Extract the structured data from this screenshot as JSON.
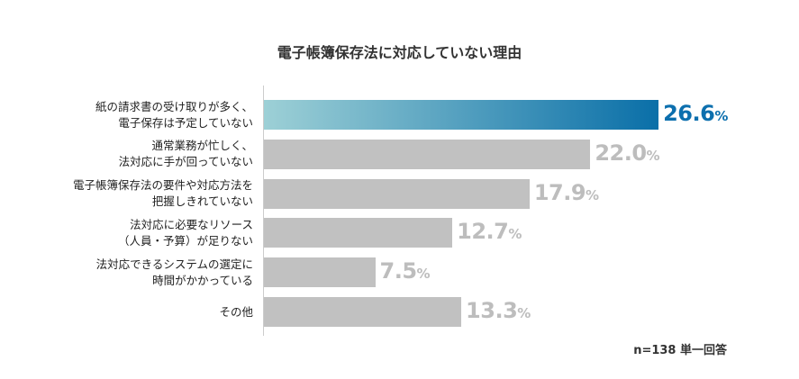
{
  "chart_data": {
    "type": "bar",
    "orientation": "horizontal",
    "title": "電子帳簿保存法に対応していない理由",
    "categories": [
      [
        "紙の請求書の受け取りが多く、",
        "電子保存は予定していない"
      ],
      [
        "通常業務が忙しく、",
        "法対応に手が回っていない"
      ],
      [
        "電子帳簿保存法の要件や対応方法を",
        "把握しきれていない"
      ],
      [
        "法対応に必要なリソース",
        "（人員・予算）が足りない"
      ],
      [
        "法対応できるシステムの選定に",
        "時間がかかっている"
      ],
      [
        "その他"
      ]
    ],
    "values": [
      26.6,
      22.0,
      17.9,
      12.7,
      7.5,
      13.3
    ],
    "value_labels": [
      "26.6",
      "22.0",
      "17.9",
      "12.7",
      "7.5",
      "13.3"
    ],
    "unit": "%",
    "highlight_index": 0,
    "colors": {
      "highlight_start": "#9dd0d6",
      "highlight_end": "#0a6fa8",
      "highlight_text": "#0c6fae",
      "default": "#c1c1c1"
    },
    "note": "n=138 単一回答"
  }
}
